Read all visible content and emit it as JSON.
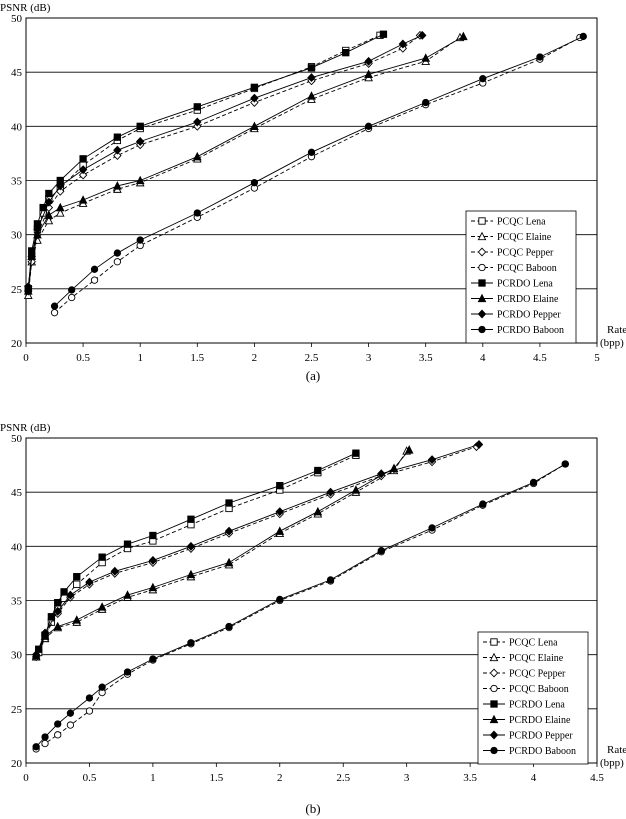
{
  "chart_data": [
    {
      "type": "line",
      "caption": "(a)",
      "ylabel": "PSNR (dB)",
      "xlabel_line1": "Rate",
      "xlabel_line2": "(bpp)",
      "xlim": [
        0,
        5
      ],
      "ylim": [
        20,
        50
      ],
      "xticks": [
        0,
        0.5,
        1,
        1.5,
        2,
        2.5,
        3,
        3.5,
        4,
        4.5,
        5
      ],
      "yticks": [
        20,
        25,
        30,
        35,
        40,
        45,
        50
      ],
      "grid": "horizontal",
      "legend_position": "lower-right",
      "series": [
        {
          "name": "PCQC Lena",
          "style": "dashed",
          "marker": "square-open",
          "x": [
            0.02,
            0.05,
            0.1,
            0.15,
            0.2,
            0.3,
            0.5,
            0.8,
            1.0,
            1.5,
            2.0,
            2.5,
            2.8,
            3.1
          ],
          "y": [
            25.0,
            28.0,
            30.5,
            32.0,
            33.3,
            34.3,
            36.4,
            38.7,
            39.8,
            41.5,
            43.5,
            45.5,
            47.0,
            48.4
          ]
        },
        {
          "name": "PCQC Elaine",
          "style": "dashed",
          "marker": "triangle-open",
          "x": [
            0.02,
            0.05,
            0.1,
            0.2,
            0.3,
            0.5,
            0.8,
            1.0,
            1.5,
            2.0,
            2.5,
            3.0,
            3.5,
            3.8
          ],
          "y": [
            24.4,
            27.5,
            29.5,
            31.3,
            32.0,
            32.9,
            34.2,
            34.8,
            37.0,
            39.8,
            42.5,
            44.5,
            46.0,
            48.2
          ]
        },
        {
          "name": "PCQC Pepper",
          "style": "dashed",
          "marker": "diamond-open",
          "x": [
            0.02,
            0.05,
            0.1,
            0.2,
            0.3,
            0.5,
            0.8,
            1.0,
            1.5,
            2.0,
            2.5,
            3.0,
            3.3,
            3.45
          ],
          "y": [
            24.8,
            27.5,
            30.0,
            32.5,
            34.0,
            35.5,
            37.3,
            38.3,
            40.0,
            42.2,
            44.2,
            45.8,
            47.2,
            48.4
          ]
        },
        {
          "name": "PCQC Baboon",
          "style": "dashed",
          "marker": "circle-open",
          "x": [
            0.25,
            0.4,
            0.6,
            0.8,
            1.0,
            1.5,
            2.0,
            2.5,
            3.0,
            3.5,
            4.0,
            4.5,
            4.85
          ],
          "y": [
            22.8,
            24.2,
            25.8,
            27.5,
            29.0,
            31.6,
            34.3,
            37.2,
            39.8,
            42.0,
            44.0,
            46.2,
            48.2
          ]
        },
        {
          "name": "PCRDO Lena",
          "style": "solid",
          "marker": "square-filled",
          "x": [
            0.02,
            0.05,
            0.1,
            0.15,
            0.2,
            0.3,
            0.5,
            0.8,
            1.0,
            1.5,
            2.0,
            2.5,
            2.8,
            3.13
          ],
          "y": [
            25.0,
            28.5,
            31.0,
            32.5,
            33.8,
            35.0,
            37.0,
            39.0,
            40.0,
            41.8,
            43.6,
            45.4,
            46.8,
            48.5
          ]
        },
        {
          "name": "PCRDO Elaine",
          "style": "solid",
          "marker": "triangle-filled",
          "x": [
            0.02,
            0.05,
            0.1,
            0.2,
            0.3,
            0.5,
            0.8,
            1.0,
            1.5,
            2.0,
            2.5,
            3.0,
            3.5,
            3.83
          ],
          "y": [
            24.8,
            28.0,
            30.0,
            31.8,
            32.5,
            33.2,
            34.5,
            35.0,
            37.2,
            40.0,
            42.8,
            44.8,
            46.3,
            48.3
          ]
        },
        {
          "name": "PCRDO Pepper",
          "style": "solid",
          "marker": "diamond-filled",
          "x": [
            0.02,
            0.05,
            0.1,
            0.2,
            0.3,
            0.5,
            0.8,
            1.0,
            1.5,
            2.0,
            2.5,
            3.0,
            3.3,
            3.47
          ],
          "y": [
            25.2,
            28.0,
            30.5,
            33.0,
            34.5,
            36.0,
            37.8,
            38.6,
            40.4,
            42.6,
            44.5,
            46.0,
            47.6,
            48.4
          ]
        },
        {
          "name": "PCRDO Baboon",
          "style": "solid",
          "marker": "circle-filled",
          "x": [
            0.25,
            0.4,
            0.6,
            0.8,
            1.0,
            1.5,
            2.0,
            2.5,
            3.0,
            3.5,
            4.0,
            4.5,
            4.88
          ],
          "y": [
            23.4,
            24.9,
            26.8,
            28.3,
            29.5,
            32.0,
            34.8,
            37.6,
            40.0,
            42.2,
            44.4,
            46.4,
            48.3
          ]
        }
      ]
    },
    {
      "type": "line",
      "caption": "(b)",
      "ylabel": "PSNR (dB)",
      "xlabel_line1": "Rate",
      "xlabel_line2": "(bpp)",
      "xlim": [
        0,
        4.5
      ],
      "ylim": [
        20,
        50
      ],
      "xticks": [
        0,
        0.5,
        1,
        1.5,
        2,
        2.5,
        3,
        3.5,
        4,
        4.5
      ],
      "yticks": [
        20,
        25,
        30,
        35,
        40,
        45,
        50
      ],
      "grid": "horizontal",
      "legend_position": "lower-right",
      "series": [
        {
          "name": "PCQC Lena",
          "style": "dashed",
          "marker": "square-open",
          "x": [
            0.1,
            0.15,
            0.2,
            0.25,
            0.3,
            0.4,
            0.6,
            0.8,
            1.0,
            1.3,
            1.6,
            2.0,
            2.3,
            2.6
          ],
          "y": [
            30.2,
            31.5,
            33.0,
            34.2,
            35.2,
            36.5,
            38.5,
            39.8,
            40.5,
            42.0,
            43.5,
            45.2,
            46.8,
            48.4
          ]
        },
        {
          "name": "PCQC Elaine",
          "style": "dashed",
          "marker": "triangle-open",
          "x": [
            0.08,
            0.15,
            0.25,
            0.4,
            0.6,
            0.8,
            1.0,
            1.3,
            1.6,
            2.0,
            2.3,
            2.6,
            2.9,
            3.0
          ],
          "y": [
            29.8,
            31.5,
            32.5,
            33.0,
            34.2,
            35.3,
            36.0,
            37.2,
            38.3,
            41.2,
            43.0,
            45.0,
            47.0,
            48.8
          ]
        },
        {
          "name": "PCQC Pepper",
          "style": "dashed",
          "marker": "diamond-open",
          "x": [
            0.08,
            0.15,
            0.25,
            0.35,
            0.5,
            0.7,
            1.0,
            1.3,
            1.6,
            2.0,
            2.4,
            2.8,
            3.2,
            3.55
          ],
          "y": [
            29.8,
            31.8,
            33.8,
            35.3,
            36.5,
            37.5,
            38.5,
            39.8,
            41.2,
            43.0,
            44.8,
            46.5,
            47.8,
            49.2
          ]
        },
        {
          "name": "PCQC Baboon",
          "style": "dashed",
          "marker": "circle-open",
          "x": [
            0.08,
            0.15,
            0.25,
            0.35,
            0.5,
            0.6,
            0.8,
            1.0,
            1.3,
            1.6,
            2.0,
            2.4,
            2.8,
            3.2,
            3.6,
            4.0,
            4.25
          ],
          "y": [
            21.3,
            21.8,
            22.6,
            23.5,
            24.8,
            26.5,
            28.2,
            29.5,
            31.0,
            32.5,
            35.0,
            36.8,
            39.5,
            41.5,
            43.8,
            45.8,
            47.6
          ]
        },
        {
          "name": "PCRDO Lena",
          "style": "solid",
          "marker": "square-filled",
          "x": [
            0.1,
            0.15,
            0.2,
            0.25,
            0.3,
            0.4,
            0.6,
            0.8,
            1.0,
            1.3,
            1.6,
            2.0,
            2.3,
            2.6
          ],
          "y": [
            30.5,
            31.8,
            33.5,
            34.8,
            35.8,
            37.2,
            39.0,
            40.2,
            41.0,
            42.5,
            44.0,
            45.6,
            47.0,
            48.6
          ]
        },
        {
          "name": "PCRDO Elaine",
          "style": "solid",
          "marker": "triangle-filled",
          "x": [
            0.08,
            0.15,
            0.25,
            0.4,
            0.6,
            0.8,
            1.0,
            1.3,
            1.6,
            2.0,
            2.3,
            2.6,
            2.9,
            3.02
          ],
          "y": [
            29.9,
            31.7,
            32.6,
            33.2,
            34.4,
            35.5,
            36.2,
            37.4,
            38.5,
            41.4,
            43.2,
            45.2,
            47.2,
            48.9
          ]
        },
        {
          "name": "PCRDO Pepper",
          "style": "solid",
          "marker": "diamond-filled",
          "x": [
            0.08,
            0.15,
            0.25,
            0.35,
            0.5,
            0.7,
            1.0,
            1.3,
            1.6,
            2.0,
            2.4,
            2.8,
            3.2,
            3.57
          ],
          "y": [
            30.0,
            32.0,
            34.0,
            35.5,
            36.7,
            37.7,
            38.7,
            40.0,
            41.4,
            43.2,
            45.0,
            46.7,
            48.0,
            49.4
          ]
        },
        {
          "name": "PCRDO Baboon",
          "style": "solid",
          "marker": "circle-filled",
          "x": [
            0.08,
            0.15,
            0.25,
            0.35,
            0.5,
            0.6,
            0.8,
            1.0,
            1.3,
            1.6,
            2.0,
            2.4,
            2.8,
            3.2,
            3.6,
            4.0,
            4.25
          ],
          "y": [
            21.5,
            22.4,
            23.6,
            24.6,
            26.0,
            27.0,
            28.4,
            29.6,
            31.1,
            32.6,
            35.1,
            36.9,
            39.6,
            41.7,
            43.9,
            45.9,
            47.6
          ]
        }
      ]
    }
  ]
}
